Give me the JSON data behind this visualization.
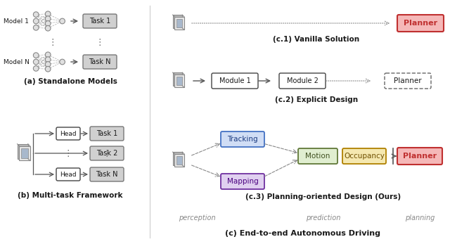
{
  "bg_color": "#ffffff",
  "title_a": "(a) Standalone Models",
  "title_b": "(b) Multi-task Framework",
  "title_c": "(c) End-to-end Autonomous Driving",
  "title_c1": "(c.1) Vanilla Solution",
  "title_c2": "(c.2) Explicit Design",
  "title_c3": "(c.3) Planning-oriented Design (Ours)",
  "label_perception": "perception",
  "label_prediction": "prediction",
  "label_planning": "planning",
  "color_planner_red_face": "#f5b8b8",
  "color_planner_red_edge": "#c03030",
  "color_planner_red_text": "#c03030",
  "color_tracking_face": "#d0ddf5",
  "color_tracking_edge": "#4472c4",
  "color_tracking_text": "#1a3a80",
  "color_mapping_face": "#e0d0f0",
  "color_mapping_edge": "#7030a0",
  "color_mapping_text": "#4a0080",
  "color_motion_face": "#e0eed0",
  "color_motion_edge": "#607838",
  "color_motion_text": "#405020",
  "color_occupancy_face": "#f5e8b0",
  "color_occupancy_edge": "#b08000",
  "color_occupancy_text": "#705000",
  "color_task_face": "#d0d0d0",
  "color_task_edge": "#777777",
  "color_head_face": "#ffffff",
  "color_head_edge": "#444444",
  "color_module_face": "#ffffff",
  "color_module_edge": "#444444",
  "color_node": "#e0e0e0",
  "color_node_edge": "#888888",
  "color_arrow": "#555555",
  "color_dashed_arrow": "#888888",
  "color_divider": "#cccccc",
  "color_gray_text": "#888888",
  "color_dark_text": "#1a1a1a",
  "color_sensor_back": "#b8b8b8",
  "color_sensor_front": "#e8e8e8",
  "color_sensor_inner": "#a8b8cc",
  "color_sensor_edge": "#888888"
}
